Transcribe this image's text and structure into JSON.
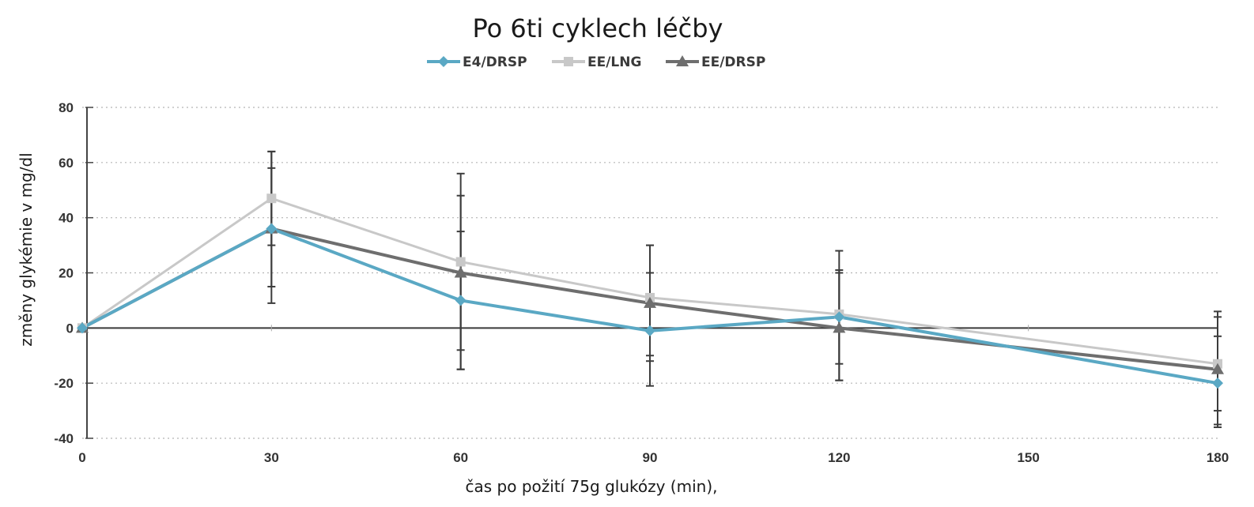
{
  "chart_data": {
    "type": "line",
    "title": "Po 6ti cyklech léčby",
    "xlabel": "čas po požití 75g glukózy (min),",
    "ylabel": "změny glykémie v mg/dl",
    "x": [
      0,
      30,
      60,
      90,
      120,
      150,
      180
    ],
    "x_ticks": [
      "0",
      "30",
      "60",
      "90",
      "120",
      "150",
      "180"
    ],
    "y_ticks": [
      "80",
      "60",
      "40",
      "20",
      "0",
      "-20",
      "-40"
    ],
    "xlim": [
      0,
      180
    ],
    "ylim": [
      -40,
      80
    ],
    "grid": "horizontal dotted",
    "legend_position": "top",
    "series": [
      {
        "name": "E4/DRSP",
        "color": "#5aa8c4",
        "marker": "diamond",
        "x": [
          0,
          30,
          60,
          90,
          120,
          180
        ],
        "values": [
          0,
          36,
          10,
          -1,
          4,
          -20
        ],
        "error_low": [
          0,
          15,
          -8,
          -12,
          -13,
          -30
        ],
        "error_high": [
          0,
          58,
          35,
          20,
          21,
          4
        ]
      },
      {
        "name": "EE/LNG",
        "color": "#c8c8c8",
        "marker": "square",
        "x": [
          0,
          30,
          60,
          90,
          120,
          180
        ],
        "values": [
          0,
          47,
          24,
          11,
          5,
          -13
        ],
        "error_low": [
          0,
          30,
          -15,
          -21,
          -19,
          -36
        ],
        "error_high": [
          0,
          64,
          56,
          30,
          28,
          6
        ]
      },
      {
        "name": "EE/DRSP",
        "color": "#6e6e6e",
        "marker": "triangle",
        "x": [
          0,
          30,
          60,
          90,
          120,
          180
        ],
        "values": [
          0,
          36,
          20,
          9,
          0,
          -15
        ],
        "error_low": [
          0,
          9,
          -15,
          -10,
          -19,
          -35
        ],
        "error_high": [
          0,
          64,
          48,
          30,
          20,
          -3
        ]
      }
    ]
  }
}
